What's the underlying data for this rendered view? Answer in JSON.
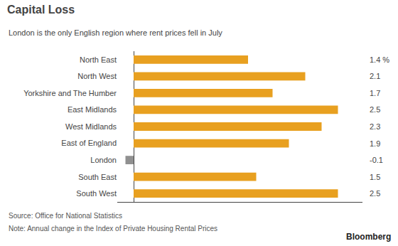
{
  "chart_data": {
    "type": "bar",
    "orientation": "horizontal",
    "title": "Capital Loss",
    "subtitle": "London is the only English region where rent prices fell in July",
    "categories": [
      "North East",
      "North West",
      "Yorkshire and The Humber",
      "East Midlands",
      "West Midlands",
      "East of England",
      "London",
      "South East",
      "South West"
    ],
    "values": [
      1.4,
      2.1,
      1.7,
      2.5,
      2.3,
      1.9,
      -0.1,
      1.5,
      2.5
    ],
    "value_labels": [
      "1.4 %",
      "2.1",
      "1.7",
      "2.5",
      "2.3",
      "1.9",
      "-0.1",
      "1.5",
      "2.5"
    ],
    "colors": [
      "#E8A020",
      "#E8A020",
      "#E8A020",
      "#E8A020",
      "#E8A020",
      "#E8A020",
      "#909090",
      "#E8A020",
      "#E8A020"
    ],
    "xlim": [
      -0.2,
      2.8
    ],
    "grid": false,
    "data_labels": true,
    "tick_labels": "y",
    "annotations": [
      "Source: Office for National Statistics",
      "Note: Annual change in the Index of Private Housing Rental Prices",
      "Bloomberg"
    ]
  }
}
